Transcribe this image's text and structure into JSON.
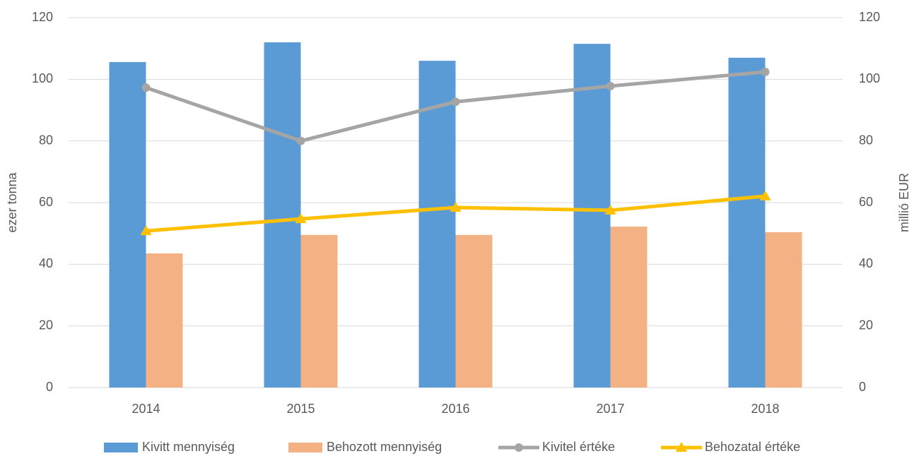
{
  "chart_data": {
    "type": "bar-line",
    "categories": [
      "2014",
      "2015",
      "2016",
      "2017",
      "2018"
    ],
    "series": [
      {
        "name": "Kivitt mennyiség",
        "type": "bar",
        "color": "#5b9bd5",
        "values": [
          105.6,
          112,
          106,
          111.5,
          107
        ]
      },
      {
        "name": "Behozott mennyiség",
        "type": "bar",
        "color": "#f4b183",
        "values": [
          43.5,
          49.5,
          49.5,
          52.2,
          50.4
        ]
      },
      {
        "name": "Kivitel értéke",
        "type": "line",
        "marker": "circle",
        "axis": "y2",
        "color": "#a5a5a5",
        "values": [
          97.3,
          80,
          92.7,
          97.8,
          102.4
        ]
      },
      {
        "name": "Behozatal értéke",
        "type": "line",
        "marker": "triangle",
        "axis": "y2",
        "color": "#ffc000",
        "values": [
          50.8,
          54.7,
          58.4,
          57.5,
          62.1
        ]
      }
    ],
    "ylabel": "ezer tonna",
    "y2label": "millió EUR",
    "ylim": [
      0,
      120
    ],
    "yticks": [
      0,
      20,
      40,
      60,
      80,
      100,
      120
    ],
    "y2lim": [
      0,
      120
    ],
    "y2ticks": [
      0,
      20,
      40,
      60,
      80,
      100,
      120
    ],
    "grid": true,
    "legend": "bottom"
  }
}
